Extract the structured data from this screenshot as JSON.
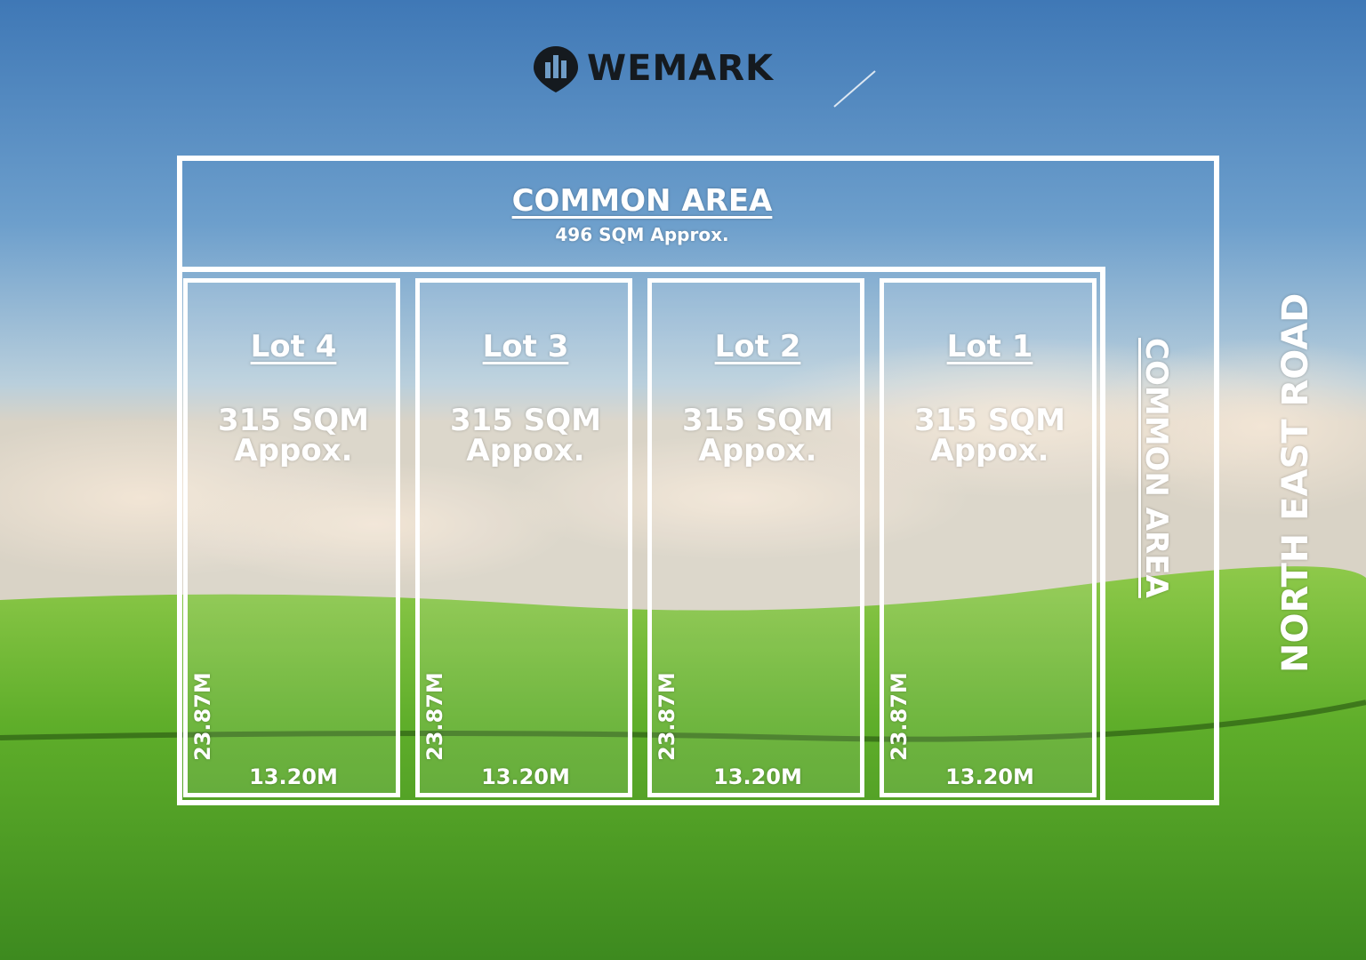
{
  "brand": {
    "name": "WEMARK"
  },
  "common_area_top": {
    "title": "COMMON AREA",
    "size": "496 SQM Approx."
  },
  "common_area_side": {
    "title": "COMMON AREA"
  },
  "road": {
    "name": "NORTH EAST ROAD"
  },
  "lots": [
    {
      "name": "Lot 4",
      "area": "315 SQM Appox.",
      "width": "13.20M",
      "depth": "23.87M"
    },
    {
      "name": "Lot 3",
      "area": "315 SQM Appox.",
      "width": "13.20M",
      "depth": "23.87M"
    },
    {
      "name": "Lot 2",
      "area": "315 SQM Appox.",
      "width": "13.20M",
      "depth": "23.87M"
    },
    {
      "name": "Lot 1",
      "area": "315 SQM Appox.",
      "width": "13.20M",
      "depth": "23.87M"
    }
  ],
  "colors": {
    "sky_top": "#3f78b6",
    "sky_mid": "#8fb6d6",
    "cloud": "#e8d9c7",
    "grass_light": "#7cc63d",
    "grass_dark": "#3d8a1f",
    "line": "#ffffff",
    "logo": "#151a1f"
  }
}
